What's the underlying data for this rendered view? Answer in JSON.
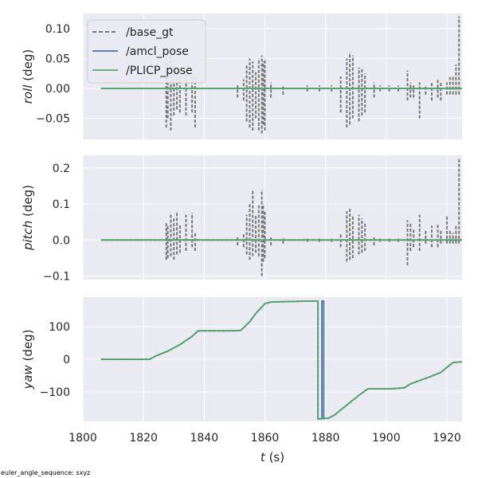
{
  "chart_data": [
    {
      "type": "line",
      "panel": "roll",
      "ylabel_var": "roll",
      "ylabel_unit": " (deg)",
      "ylim": [
        -0.085,
        0.125
      ],
      "yticks": [
        -0.05,
        0.0,
        0.05,
        0.1
      ],
      "ytick_labels": [
        "−0.05",
        "0.00",
        "0.05",
        "0.10"
      ],
      "xlim": [
        1800,
        1925
      ],
      "grid": true,
      "legend_position": "upper-left",
      "series": [
        {
          "name": "/base_gt",
          "style": "dashed",
          "color": "#777777",
          "spikes": [
            [
              1827.5,
              -0.065,
              0.05
            ],
            [
              1828,
              -0.05,
              0.04
            ],
            [
              1829,
              -0.07,
              0.055
            ],
            [
              1830,
              -0.045,
              0.04
            ],
            [
              1831,
              -0.035,
              0.03
            ],
            [
              1832,
              -0.04,
              0.035
            ],
            [
              1834,
              -0.045,
              0.03
            ],
            [
              1836,
              -0.04,
              0.025
            ],
            [
              1837,
              -0.065,
              0.02
            ],
            [
              1851,
              -0.015,
              0.005
            ],
            [
              1853,
              -0.02,
              0.015
            ],
            [
              1854,
              -0.055,
              0.04
            ],
            [
              1855,
              -0.065,
              0.05
            ],
            [
              1856,
              -0.07,
              0.045
            ],
            [
              1857,
              -0.05,
              0.03
            ],
            [
              1858,
              -0.07,
              0.05
            ],
            [
              1859,
              -0.075,
              0.055
            ],
            [
              1859.5,
              -0.06,
              0.045
            ],
            [
              1860,
              -0.07,
              0.05
            ],
            [
              1862,
              -0.015,
              0.01
            ],
            [
              1866,
              -0.01,
              0.005
            ],
            [
              1874,
              -0.005,
              0.005
            ],
            [
              1878,
              -0.005,
              0.005
            ],
            [
              1882,
              -0.005,
              0.005
            ],
            [
              1885,
              -0.04,
              0.02
            ],
            [
              1887,
              -0.065,
              0.05
            ],
            [
              1888,
              -0.06,
              0.06
            ],
            [
              1889,
              -0.05,
              0.055
            ],
            [
              1891,
              -0.055,
              0.035
            ],
            [
              1892,
              -0.045,
              0.035
            ],
            [
              1893,
              -0.04,
              0.025
            ],
            [
              1896,
              -0.015,
              0.01
            ],
            [
              1898,
              -0.005,
              0.005
            ],
            [
              1901,
              -0.005,
              0.005
            ],
            [
              1904,
              -0.005,
              0.005
            ],
            [
              1907,
              -0.02,
              0.03
            ],
            [
              1908,
              -0.015,
              0.01
            ],
            [
              1909,
              -0.015,
              0.005
            ],
            [
              1911,
              -0.05,
              0.01
            ],
            [
              1913,
              -0.01,
              0.005
            ],
            [
              1915,
              -0.02,
              0.01
            ],
            [
              1917,
              -0.015,
              0.015
            ],
            [
              1918,
              -0.02,
              0.01
            ],
            [
              1920,
              -0.01,
              0.01
            ],
            [
              1921,
              -0.01,
              0.02
            ],
            [
              1922,
              -0.01,
              0.02
            ],
            [
              1923,
              -0.01,
              0.04
            ],
            [
              1924,
              -0.01,
              0.12
            ]
          ]
        },
        {
          "name": "/amcl_pose",
          "style": "solid",
          "color": "#4c72b0",
          "x": [
            1806,
            1925
          ],
          "y": [
            0.0,
            0.0
          ]
        },
        {
          "name": "/PLICP_pose",
          "style": "solid",
          "color": "#55a868",
          "x": [
            1806,
            1925
          ],
          "y": [
            0.0,
            0.0
          ]
        }
      ]
    },
    {
      "type": "line",
      "panel": "pitch",
      "ylabel_var": "pitch",
      "ylabel_unit": " (deg)",
      "ylim": [
        -0.11,
        0.235
      ],
      "yticks": [
        -0.1,
        0.0,
        0.1,
        0.2
      ],
      "ytick_labels": [
        "−0.1",
        "0.0",
        "0.1",
        "0.2"
      ],
      "xlim": [
        1800,
        1925
      ],
      "grid": true,
      "series": [
        {
          "name": "/base_gt",
          "style": "dashed",
          "color": "#777777",
          "spikes": [
            [
              1827.5,
              -0.055,
              0.05
            ],
            [
              1828,
              -0.05,
              0.04
            ],
            [
              1829,
              -0.045,
              0.075
            ],
            [
              1830,
              -0.055,
              0.06
            ],
            [
              1831,
              -0.04,
              0.08
            ],
            [
              1832,
              -0.035,
              0.04
            ],
            [
              1834,
              -0.03,
              0.07
            ],
            [
              1836,
              -0.02,
              0.075
            ],
            [
              1837,
              -0.03,
              0.02
            ],
            [
              1851,
              -0.015,
              0.01
            ],
            [
              1853,
              -0.02,
              0.02
            ],
            [
              1854,
              -0.04,
              0.07
            ],
            [
              1855,
              -0.055,
              0.1
            ],
            [
              1856,
              -0.045,
              0.14
            ],
            [
              1857,
              -0.035,
              0.07
            ],
            [
              1858,
              -0.045,
              0.1
            ],
            [
              1859,
              -0.1,
              0.14
            ],
            [
              1859.5,
              -0.06,
              0.1
            ],
            [
              1860,
              -0.05,
              0.08
            ],
            [
              1862,
              -0.015,
              0.01
            ],
            [
              1866,
              -0.01,
              0.005
            ],
            [
              1874,
              -0.005,
              0.005
            ],
            [
              1878,
              -0.005,
              0.005
            ],
            [
              1882,
              -0.005,
              0.005
            ],
            [
              1885,
              -0.02,
              0.02
            ],
            [
              1887,
              -0.06,
              0.08
            ],
            [
              1888,
              -0.055,
              0.09
            ],
            [
              1889,
              -0.05,
              0.07
            ],
            [
              1891,
              -0.04,
              0.07
            ],
            [
              1892,
              -0.035,
              0.06
            ],
            [
              1893,
              -0.03,
              0.05
            ],
            [
              1896,
              -0.015,
              0.01
            ],
            [
              1898,
              -0.005,
              0.005
            ],
            [
              1901,
              -0.005,
              0.005
            ],
            [
              1904,
              -0.005,
              0.005
            ],
            [
              1907,
              -0.07,
              0.055
            ],
            [
              1908,
              -0.03,
              0.05
            ],
            [
              1909,
              -0.02,
              0.03
            ],
            [
              1911,
              -0.03,
              0.07
            ],
            [
              1913,
              -0.01,
              0.03
            ],
            [
              1915,
              -0.02,
              0.04
            ],
            [
              1917,
              -0.02,
              0.045
            ],
            [
              1918,
              -0.01,
              0.03
            ],
            [
              1920,
              -0.01,
              0.07
            ],
            [
              1921,
              -0.01,
              0.03
            ],
            [
              1922,
              -0.01,
              0.02
            ],
            [
              1923,
              -0.01,
              0.04
            ],
            [
              1924,
              -0.01,
              0.225
            ]
          ]
        },
        {
          "name": "/amcl_pose",
          "style": "solid",
          "color": "#4c72b0",
          "x": [
            1806,
            1925
          ],
          "y": [
            0.0,
            0.0
          ]
        },
        {
          "name": "/PLICP_pose",
          "style": "solid",
          "color": "#55a868",
          "x": [
            1806,
            1925
          ],
          "y": [
            0.0,
            0.0
          ]
        }
      ]
    },
    {
      "type": "line",
      "panel": "yaw",
      "ylabel_var": "yaw",
      "ylabel_unit": " (deg)",
      "xlabel_var": "t",
      "xlabel_unit": " (s)",
      "ylim": [
        -190,
        190
      ],
      "yticks": [
        -100,
        0,
        100
      ],
      "ytick_labels": [
        "−100",
        "0",
        "100"
      ],
      "xlim": [
        1800,
        1925
      ],
      "xticks": [
        1800,
        1820,
        1840,
        1860,
        1880,
        1900,
        1920
      ],
      "xtick_labels": [
        "1800",
        "1820",
        "1840",
        "1860",
        "1880",
        "1900",
        "1920"
      ],
      "grid": true,
      "series": [
        {
          "name": "/base_gt",
          "style": "dashed",
          "color": "#777777",
          "x": [
            1806,
            1822,
            1824,
            1828,
            1832,
            1836,
            1838,
            1848,
            1852,
            1855,
            1857,
            1860,
            1862,
            1874,
            1877.5,
            1877.5,
            1881,
            1883,
            1887,
            1891,
            1894,
            1902,
            1906,
            1908,
            1914,
            1918,
            1922,
            1925
          ],
          "y": [
            0,
            0,
            10,
            25,
            45,
            70,
            87,
            87,
            88,
            115,
            140,
            170,
            175,
            178,
            178,
            -182,
            -180,
            -170,
            -140,
            -110,
            -90,
            -90,
            -87,
            -75,
            -55,
            -40,
            -10,
            -8
          ]
        },
        {
          "name": "/amcl_pose",
          "style": "solid",
          "color": "#4c72b0",
          "x": [
            1806,
            1822,
            1824,
            1828,
            1832,
            1836,
            1838,
            1848,
            1852,
            1855,
            1857,
            1860,
            1862,
            1874,
            1877.5,
            1877.5,
            1878.8,
            1878.8,
            1879.4,
            1879.4,
            1881,
            1883,
            1887,
            1891,
            1894,
            1902,
            1906,
            1908,
            1914,
            1918,
            1922,
            1925
          ],
          "y": [
            0,
            0,
            10,
            25,
            45,
            70,
            87,
            87,
            88,
            115,
            140,
            170,
            175,
            178,
            178,
            -182,
            -182,
            178,
            178,
            -180,
            -180,
            -170,
            -140,
            -110,
            -90,
            -90,
            -87,
            -75,
            -55,
            -40,
            -10,
            -8
          ]
        },
        {
          "name": "/PLICP_pose",
          "style": "solid",
          "color": "#55a868",
          "x": [
            1806,
            1822,
            1824,
            1828,
            1832,
            1836,
            1838,
            1848,
            1852,
            1855,
            1857,
            1860,
            1862,
            1874,
            1877.5,
            1877.5,
            1881,
            1883,
            1887,
            1891,
            1894,
            1902,
            1906,
            1908,
            1914,
            1918,
            1922,
            1925
          ],
          "y": [
            0,
            0,
            10,
            25,
            45,
            70,
            87,
            87,
            88,
            115,
            140,
            170,
            175,
            178,
            178,
            -182,
            -180,
            -170,
            -140,
            -110,
            -90,
            -90,
            -87,
            -75,
            -55,
            -40,
            -10,
            -8
          ]
        }
      ]
    }
  ],
  "footnote": "euler_angle_sequence: sxyz"
}
